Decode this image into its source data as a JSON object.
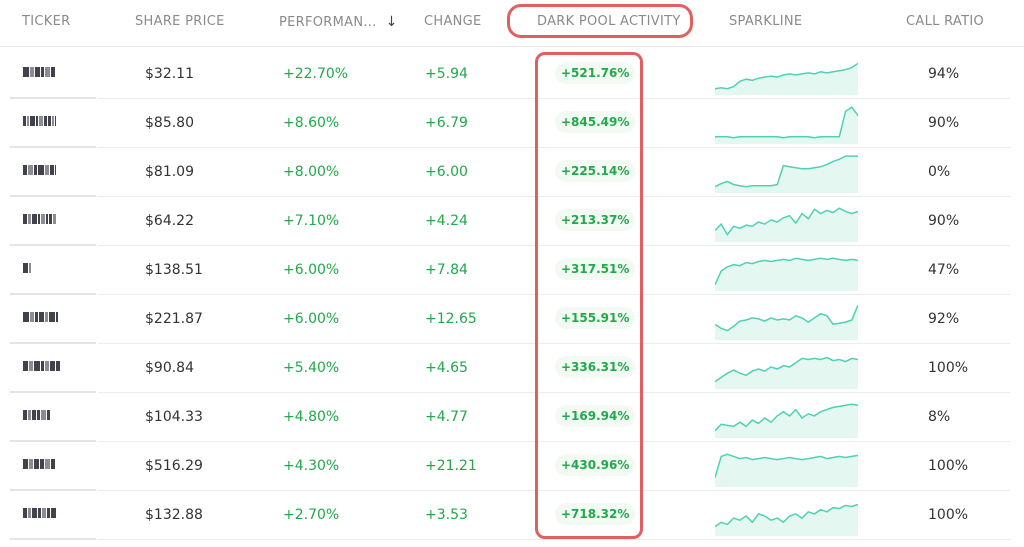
{
  "header": {
    "ticker": "TICKER",
    "share_price": "SHARE PRICE",
    "performance": "PERFORMAN...",
    "sort_icon": "arrow-down-icon",
    "change": "CHANGE",
    "dark_pool": "DARK POOL ACTIVITY",
    "sparkline": "SPARKLINE",
    "call_ratio": "CALL RATIO"
  },
  "colors": {
    "positive": "#21a94a",
    "highlight": "#e06060",
    "sparkline_stroke": "#4fd1b3",
    "sparkline_fill": "#e4f8f1"
  },
  "rows": [
    {
      "price": "$32.11",
      "performance": "+22.70%",
      "change": "+5.94",
      "dark_pool": "+521.76%",
      "call_ratio": "94%",
      "spark": [
        5,
        6,
        5,
        7,
        12,
        14,
        13,
        15,
        16,
        17,
        16,
        18,
        19,
        18,
        19,
        20,
        19,
        21,
        20,
        21,
        22,
        23,
        25,
        29
      ]
    },
    {
      "price": "$85.80",
      "performance": "+8.60%",
      "change": "+6.79",
      "dark_pool": "+845.49%",
      "call_ratio": "90%",
      "spark": [
        6,
        6,
        6,
        5,
        6,
        6,
        6,
        6,
        6,
        6,
        6,
        5,
        6,
        6,
        6,
        6,
        5,
        6,
        6,
        6,
        6,
        30,
        34,
        26
      ]
    },
    {
      "price": "$81.09",
      "performance": "+8.00%",
      "change": "+6.00",
      "dark_pool": "+225.14%",
      "call_ratio": "0%",
      "spark": [
        5,
        8,
        10,
        7,
        6,
        5,
        6,
        6,
        6,
        6,
        7,
        25,
        24,
        23,
        22,
        22,
        23,
        24,
        26,
        29,
        31,
        34,
        34,
        34
      ]
    },
    {
      "price": "$64.22",
      "performance": "+7.10%",
      "change": "+4.24",
      "dark_pool": "+213.37%",
      "call_ratio": "90%",
      "spark": [
        10,
        16,
        6,
        14,
        12,
        15,
        14,
        18,
        16,
        20,
        18,
        22,
        24,
        17,
        26,
        21,
        30,
        26,
        29,
        27,
        31,
        28,
        26,
        28
      ]
    },
    {
      "price": "$138.51",
      "performance": "+6.00%",
      "change": "+7.84",
      "dark_pool": "+317.51%",
      "call_ratio": "47%",
      "spark": [
        5,
        18,
        22,
        24,
        23,
        26,
        25,
        27,
        28,
        27,
        28,
        29,
        28,
        30,
        29,
        28,
        29,
        30,
        29,
        30,
        29,
        28,
        29,
        28
      ]
    },
    {
      "price": "$221.87",
      "performance": "+6.00%",
      "change": "+12.65",
      "dark_pool": "+155.91%",
      "call_ratio": "92%",
      "spark": [
        14,
        10,
        8,
        12,
        17,
        18,
        20,
        19,
        17,
        20,
        18,
        19,
        18,
        22,
        20,
        16,
        20,
        24,
        22,
        14,
        15,
        16,
        18,
        32
      ]
    },
    {
      "price": "$90.84",
      "performance": "+5.40%",
      "change": "+4.65",
      "dark_pool": "+336.31%",
      "call_ratio": "100%",
      "spark": [
        6,
        10,
        14,
        17,
        14,
        12,
        16,
        18,
        16,
        20,
        18,
        21,
        20,
        24,
        28,
        27,
        28,
        27,
        29,
        26,
        27,
        25,
        28,
        27
      ]
    },
    {
      "price": "$104.33",
      "performance": "+4.80%",
      "change": "+4.77",
      "dark_pool": "+169.94%",
      "call_ratio": "8%",
      "spark": [
        6,
        12,
        11,
        10,
        14,
        10,
        16,
        13,
        18,
        14,
        20,
        24,
        20,
        26,
        18,
        22,
        20,
        24,
        26,
        28,
        29,
        30,
        31,
        30
      ]
    },
    {
      "price": "$516.29",
      "performance": "+4.30%",
      "change": "+21.21",
      "dark_pool": "+430.96%",
      "call_ratio": "100%",
      "spark": [
        8,
        28,
        30,
        28,
        26,
        27,
        25,
        26,
        27,
        26,
        25,
        26,
        27,
        26,
        25,
        26,
        27,
        28,
        26,
        27,
        28,
        27,
        28,
        29
      ]
    },
    {
      "price": "$132.88",
      "performance": "+2.70%",
      "change": "+3.53",
      "dark_pool": "+718.32%",
      "call_ratio": "100%",
      "spark": [
        8,
        12,
        10,
        16,
        14,
        18,
        12,
        20,
        18,
        14,
        16,
        12,
        18,
        20,
        16,
        22,
        20,
        24,
        22,
        26,
        25,
        28,
        27,
        29
      ]
    }
  ]
}
